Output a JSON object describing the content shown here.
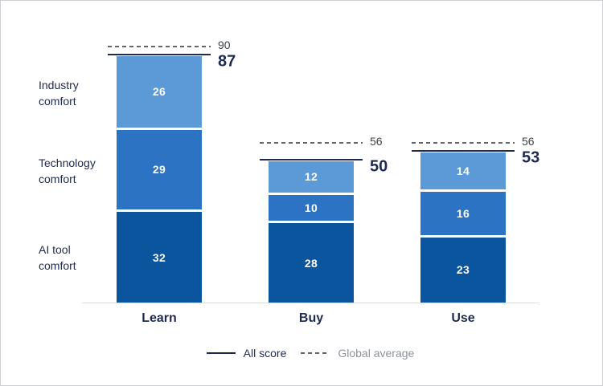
{
  "chart_data": {
    "type": "bar",
    "stacked": true,
    "title": "",
    "xlabel": "",
    "ylabel": "",
    "ylim": [
      0,
      100
    ],
    "grid": false,
    "legend_position": "bottom",
    "categories": [
      "Learn",
      "Buy",
      "Use"
    ],
    "series": [
      {
        "name": "AI tool comfort",
        "values": [
          32,
          28,
          23
        ],
        "color": "#0b549e"
      },
      {
        "name": "Technology comfort",
        "values": [
          29,
          10,
          16
        ],
        "color": "#2d73c4"
      },
      {
        "name": "Industry comfort",
        "values": [
          26,
          12,
          14
        ],
        "color": "#5b9ad7"
      }
    ],
    "all_score": {
      "label": "All score",
      "values": [
        87,
        50,
        53
      ],
      "color": "#1f2a52"
    },
    "global_average": {
      "label": "Global average",
      "values": [
        90,
        56,
        56
      ],
      "color": "#60646c"
    }
  },
  "colors": {
    "navy_text": "#1f2a52",
    "ga_number_text": "#3c4048",
    "legend_muted_text": "#8e939c",
    "axis": "#d8dadc"
  }
}
